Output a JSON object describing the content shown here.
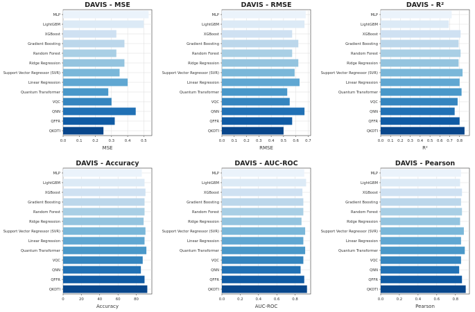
{
  "chart_data": [
    {
      "type": "bar",
      "orientation": "horizontal",
      "title": "DAVIS - MSE",
      "xlabel": "MSE",
      "categories": [
        "MLP",
        "LightGBM",
        "XGBoost",
        "Gradient Boosting",
        "Random Forest",
        "Ridge Regression",
        "Support Vector Regressor (SVR)",
        "Linear Regression",
        "Quantum Transformer",
        "VQC",
        "QNN",
        "QFFR",
        "QKDTI"
      ],
      "values": [
        0.53,
        0.5,
        0.33,
        0.38,
        0.33,
        0.38,
        0.35,
        0.4,
        0.28,
        0.3,
        0.45,
        0.32,
        0.25
      ],
      "xlim": [
        0,
        0.55
      ],
      "xticks": [
        0,
        0.1,
        0.2,
        0.3,
        0.4,
        0.5
      ],
      "xtick_labels": [
        "0.0",
        "0.1",
        "0.2",
        "0.3",
        "0.4",
        "0.5"
      ]
    },
    {
      "type": "bar",
      "orientation": "horizontal",
      "title": "DAVIS - RMSE",
      "xlabel": "RMSE",
      "categories": [
        "MLP",
        "LightGBM",
        "XGBoost",
        "Gradient Boosting",
        "Random Forest",
        "Ridge Regression",
        "Support Vector Regressor (SVR)",
        "Linear Regression",
        "Quantum Transformer",
        "VQC",
        "QNN",
        "QFFR",
        "QKDTI"
      ],
      "values": [
        0.68,
        0.67,
        0.57,
        0.62,
        0.57,
        0.62,
        0.59,
        0.63,
        0.53,
        0.55,
        0.67,
        0.57,
        0.5
      ],
      "xlim": [
        0,
        0.72
      ],
      "xticks": [
        0,
        0.1,
        0.2,
        0.3,
        0.4,
        0.5,
        0.6,
        0.7
      ],
      "xtick_labels": [
        "0.0",
        "0.1",
        "0.2",
        "0.3",
        "0.4",
        "0.5",
        "0.6",
        "0.7"
      ]
    },
    {
      "type": "bar",
      "orientation": "horizontal",
      "title": "DAVIS - R²",
      "xlabel": "R²",
      "categories": [
        "MLP",
        "LightGBM",
        "XGBoost",
        "Gradient Boosting",
        "Random Forest",
        "Ridge Regression",
        "Support Vector Regressor (SVR)",
        "Linear Regression",
        "Quantum Transformer",
        "VQC",
        "QNN",
        "QFFR",
        "QKDTI"
      ],
      "values": [
        0.72,
        0.69,
        0.81,
        0.79,
        0.81,
        0.79,
        0.83,
        0.8,
        0.82,
        0.78,
        0.75,
        0.8,
        0.85
      ],
      "xlim": [
        0,
        0.9
      ],
      "xticks": [
        0,
        0.1,
        0.2,
        0.3,
        0.4,
        0.5,
        0.6,
        0.7,
        0.8
      ],
      "xtick_labels": [
        "0.0",
        "0.1",
        "0.2",
        "0.3",
        "0.4",
        "0.5",
        "0.6",
        "0.7",
        "0.8"
      ]
    },
    {
      "type": "bar",
      "orientation": "horizontal",
      "title": "DAVIS - Accuracy",
      "xlabel": "Accuracy",
      "categories": [
        "MLP",
        "LightGBM",
        "XGBoost",
        "Gradient Boosting",
        "Random Forest",
        "Ridge Regression",
        "Support Vector Regressor (SVR)",
        "Linear Regression",
        "Quantum Transformer",
        "VQC",
        "QNN",
        "QFFR",
        "QKDTI"
      ],
      "values": [
        86,
        89,
        90,
        89,
        89,
        88,
        90,
        89,
        91,
        87,
        85,
        89,
        92
      ],
      "xlim": [
        0,
        97
      ],
      "xticks": [
        0,
        20,
        40,
        60,
        80
      ],
      "xtick_labels": [
        "0",
        "20",
        "40",
        "60",
        "80"
      ]
    },
    {
      "type": "bar",
      "orientation": "horizontal",
      "title": "DAVIS - AUC-ROC",
      "xlabel": "AUC-ROC",
      "categories": [
        "MLP",
        "LightGBM",
        "XGBoost",
        "Gradient Boosting",
        "Random Forest",
        "Ridge Regression",
        "Support Vector Regressor (SVR)",
        "Linear Regression",
        "Quantum Transformer",
        "VQC",
        "QNN",
        "QFFR",
        "QKDTI"
      ],
      "values": [
        0.9,
        0.92,
        0.88,
        0.89,
        0.89,
        0.87,
        0.91,
        0.89,
        0.91,
        0.89,
        0.86,
        0.9,
        0.93
      ],
      "xlim": [
        0,
        0.97
      ],
      "xticks": [
        0,
        0.2,
        0.4,
        0.6,
        0.8
      ],
      "xtick_labels": [
        "0.0",
        "0.2",
        "0.4",
        "0.6",
        "0.8"
      ]
    },
    {
      "type": "bar",
      "orientation": "horizontal",
      "title": "DAVIS - Pearson",
      "xlabel": "Pearson",
      "categories": [
        "MLP",
        "LightGBM",
        "XGBoost",
        "Gradient Boosting",
        "Random Forest",
        "Ridge Regression",
        "Support Vector Regressor (SVR)",
        "Linear Regression",
        "Quantum Transformer",
        "VQC",
        "QNN",
        "QFFR",
        "QKDTI"
      ],
      "values": [
        0.86,
        0.85,
        0.87,
        0.86,
        0.87,
        0.85,
        0.89,
        0.86,
        0.9,
        0.86,
        0.84,
        0.87,
        0.91
      ],
      "xlim": [
        0,
        0.95
      ],
      "xticks": [
        0,
        0.2,
        0.4,
        0.6,
        0.8
      ],
      "xtick_labels": [
        "0.0",
        "0.2",
        "0.4",
        "0.6",
        "0.8"
      ]
    }
  ],
  "colors": {
    "bars": [
      "#ebf3fb",
      "#dceaf6",
      "#cfe1f2",
      "#bcd7eb",
      "#a9cfe5",
      "#94c4df",
      "#7ab7d9",
      "#60a7d2",
      "#4a98c9",
      "#3585bf",
      "#2171b5",
      "#105ba4",
      "#08468b"
    ],
    "grid": "#dcdcdc",
    "axis": "#333333"
  }
}
